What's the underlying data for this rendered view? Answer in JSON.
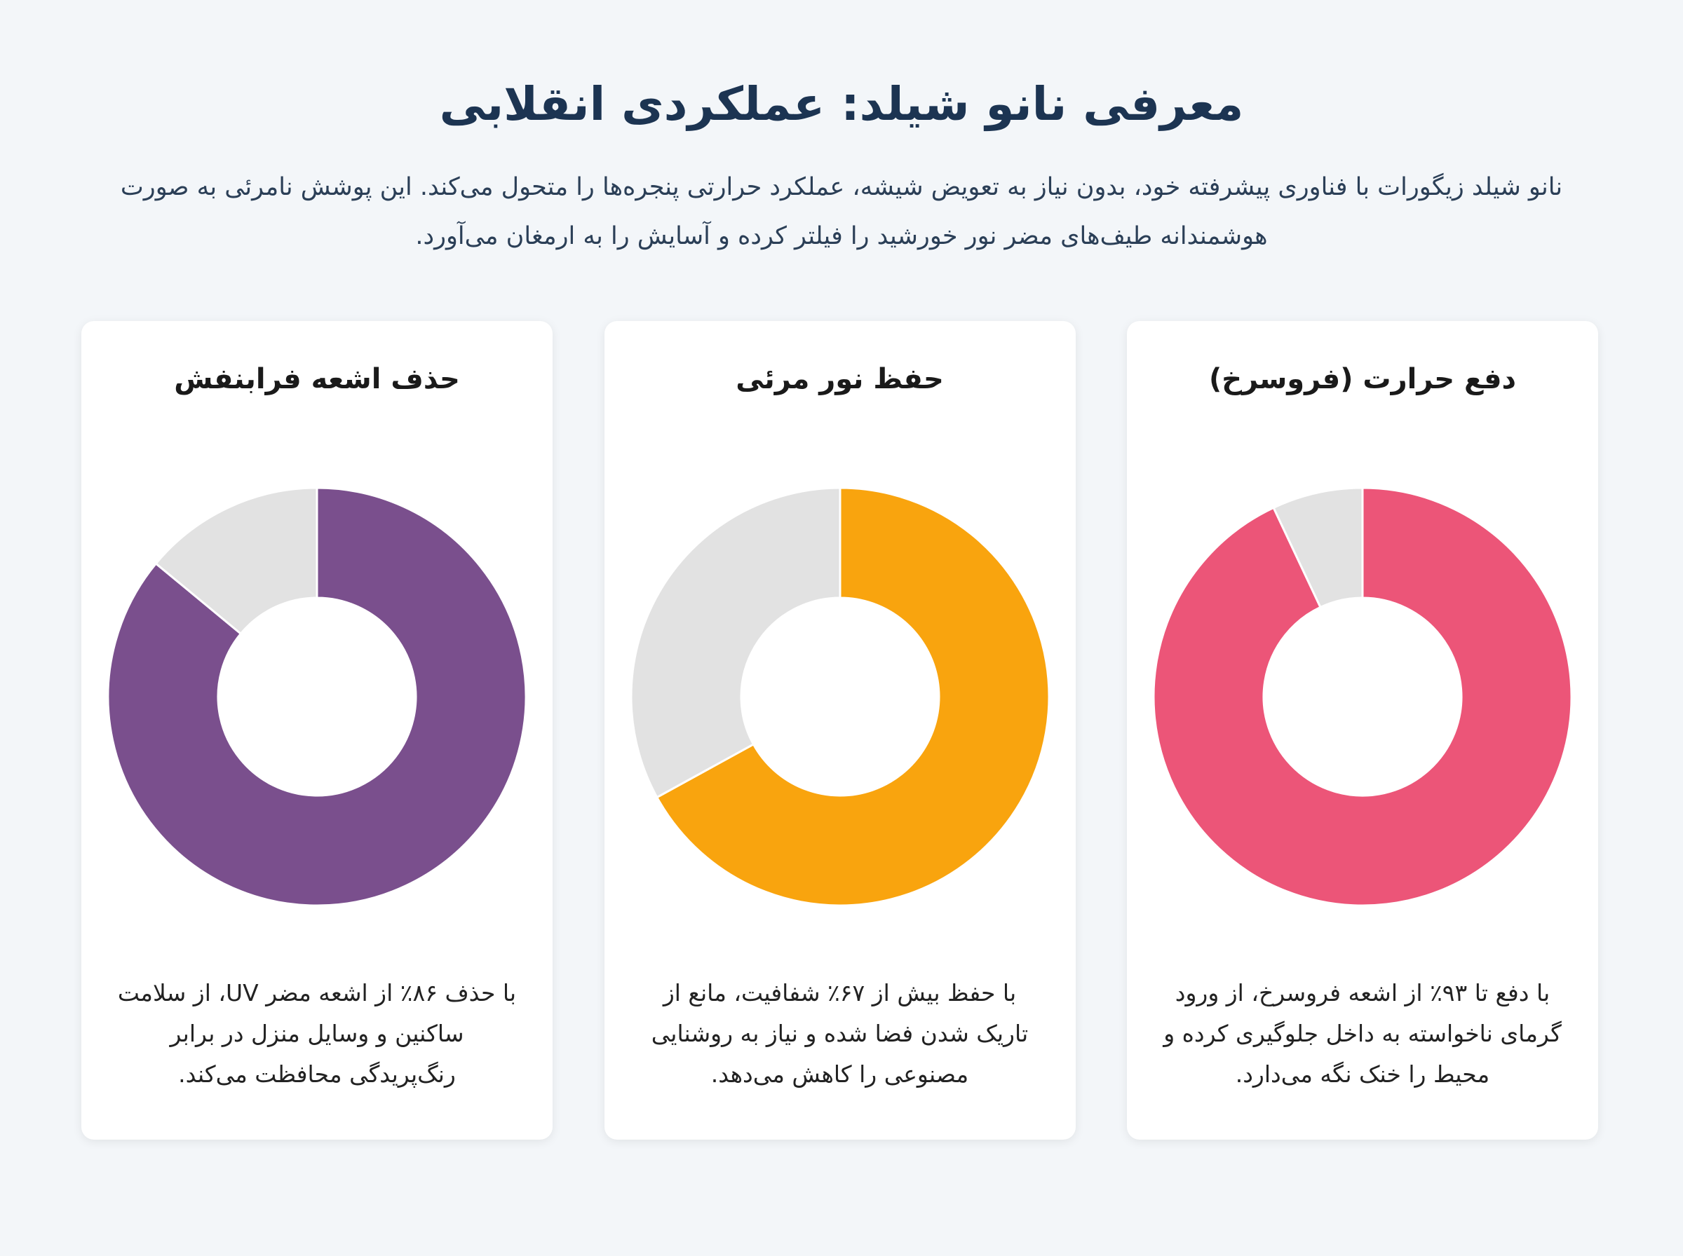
{
  "header": {
    "title": "معرفی نانو شیلد: عملکردی انقلابی",
    "description": "نانو شیلد زیگورات با فناوری پیشرفته خود، بدون نیاز به تعویض شیشه، عملکرد حرارتی پنجره‌ها را متحول می‌کند. این پوشش نامرئی به صورت هوشمندانه طیف‌های مضر نور خورشید را فیلتر کرده و آسایش را به ارمغان می‌آورد."
  },
  "chart_data": [
    {
      "type": "pie",
      "title": "دفع حرارت (فروسرخ)",
      "values": [
        93,
        7
      ],
      "colors": [
        "#ec5578",
        "#e2e2e2"
      ],
      "description": "با دفع تا ۹۳٪ از اشعه فروسرخ، از ورود گرمای ناخواسته به داخل جلوگیری کرده و محیط را خنک نگه می‌دارد."
    },
    {
      "type": "pie",
      "title": "حفظ نور مرئی",
      "values": [
        67,
        33
      ],
      "colors": [
        "#f9a40e",
        "#e2e2e2"
      ],
      "description": "با حفظ بیش از ۶۷٪ شفافیت، مانع از تاریک شدن فضا شده و نیاز به روشنایی مصنوعی را کاهش می‌دهد."
    },
    {
      "type": "pie",
      "title": "حذف اشعه فرابنفش",
      "values": [
        86,
        14
      ],
      "colors": [
        "#7a4f8d",
        "#e2e2e2"
      ],
      "description": "با حذف ۸۶٪ از اشعه مضر UV، از سلامت ساکنین و وسایل منزل در برابر رنگ‌پریدگی محافظت می‌کند."
    }
  ]
}
